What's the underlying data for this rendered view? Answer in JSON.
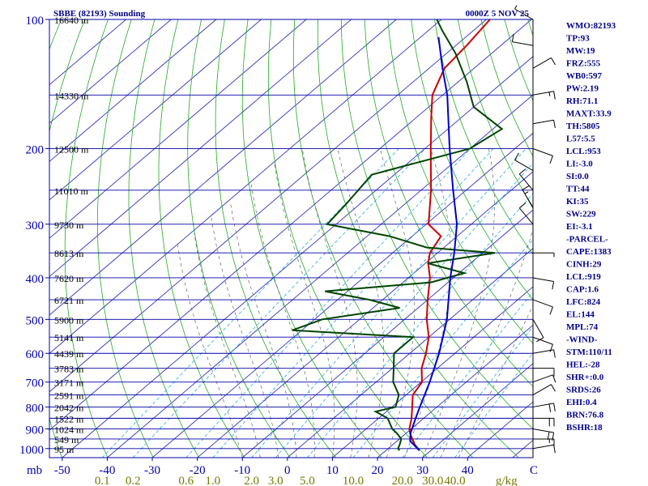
{
  "chart_data": {
    "type": "skew-t",
    "title": "SBBE (82193) Sounding",
    "datetime": "0000Z  5 NOV 25",
    "x_unit_label": "C",
    "y_unit_label": "mb",
    "mixing_unit_label": "g/kg",
    "pressure_ticks": [
      100,
      200,
      300,
      400,
      500,
      600,
      700,
      800,
      900,
      1000
    ],
    "temp_ticks": [
      -50,
      -40,
      -30,
      -20,
      -10,
      0,
      10,
      20,
      30,
      40
    ],
    "mixing_ticks": [
      "0.1",
      "0.2",
      "0.6",
      "1.0",
      "2.0",
      "3.0",
      "5.0",
      "10.0",
      "20.0",
      "30.0",
      "40.0"
    ],
    "height_levels": [
      {
        "p": 100,
        "h": "16640 m"
      },
      {
        "p": 150,
        "h": "14330 m"
      },
      {
        "p": 200,
        "h": "12500 m"
      },
      {
        "p": 250,
        "h": "11010 m"
      },
      {
        "p": 300,
        "h": "9730 m"
      },
      {
        "p": 350,
        "h": "8613 m"
      },
      {
        "p": 400,
        "h": "7620 m"
      },
      {
        "p": 450,
        "h": "6721 m"
      },
      {
        "p": 500,
        "h": "5900 m"
      },
      {
        "p": 550,
        "h": "5141 m"
      },
      {
        "p": 600,
        "h": "4439 m"
      },
      {
        "p": 650,
        "h": "3783 m"
      },
      {
        "p": 700,
        "h": "3171 m"
      },
      {
        "p": 750,
        "h": "2591 m"
      },
      {
        "p": 800,
        "h": "2042 m"
      },
      {
        "p": 850,
        "h": "1522 m"
      },
      {
        "p": 900,
        "h": "1024 m"
      },
      {
        "p": 950,
        "h": "549 m"
      },
      {
        "p": 1000,
        "h": "95 m"
      }
    ],
    "series": [
      {
        "kind": "temperature",
        "color": "#cc0000",
        "points": [
          [
            1010,
            27.4
          ],
          [
            1000,
            26.5
          ],
          [
            975,
            24.6
          ],
          [
            950,
            22.9
          ],
          [
            925,
            21.1
          ],
          [
            900,
            19.6
          ],
          [
            850,
            17.3
          ],
          [
            800,
            14.5
          ],
          [
            750,
            11.5
          ],
          [
            700,
            10.2
          ],
          [
            650,
            6.5
          ],
          [
            600,
            3.6
          ],
          [
            550,
            0.0
          ],
          [
            500,
            -5.1
          ],
          [
            450,
            -10.0
          ],
          [
            400,
            -15.2
          ],
          [
            370,
            -19.4
          ],
          [
            350,
            -21.7
          ],
          [
            320,
            -23.6
          ],
          [
            300,
            -29.5
          ],
          [
            250,
            -37.8
          ],
          [
            200,
            -48.7
          ],
          [
            170,
            -56.5
          ],
          [
            150,
            -62.3
          ],
          [
            130,
            -66.6
          ],
          [
            115,
            -67.6
          ],
          [
            100,
            -69.2
          ]
        ]
      },
      {
        "kind": "dewpoint",
        "color": "#004400",
        "points": [
          [
            1010,
            23.0
          ],
          [
            1000,
            22.2
          ],
          [
            975,
            21.4
          ],
          [
            950,
            20.4
          ],
          [
            925,
            18.3
          ],
          [
            900,
            15.8
          ],
          [
            850,
            12.0
          ],
          [
            820,
            7.6
          ],
          [
            800,
            10.8
          ],
          [
            750,
            8.4
          ],
          [
            700,
            3.8
          ],
          [
            650,
            0.3
          ],
          [
            600,
            -3.5
          ],
          [
            550,
            -3.5
          ],
          [
            530,
            -32.1
          ],
          [
            500,
            -28.3
          ],
          [
            470,
            -14.1
          ],
          [
            450,
            -22.9
          ],
          [
            430,
            -35.0
          ],
          [
            410,
            -13.8
          ],
          [
            390,
            -8.8
          ],
          [
            370,
            -19.5
          ],
          [
            350,
            -7.3
          ],
          [
            340,
            -23.8
          ],
          [
            320,
            -35.0
          ],
          [
            300,
            -52.0
          ],
          [
            270,
            -53.0
          ],
          [
            230,
            -55.0
          ],
          [
            200,
            -40.0
          ],
          [
            180,
            -38.0
          ],
          [
            160,
            -50.0
          ],
          [
            140,
            -58.0
          ],
          [
            120,
            -68.0
          ],
          [
            106,
            -77.0
          ],
          [
            100,
            -81.0
          ]
        ]
      },
      {
        "kind": "parcel",
        "color": "#0000cc",
        "points": [
          [
            1010,
            27.4
          ],
          [
            960,
            22.9
          ],
          [
            919,
            20.9
          ],
          [
            850,
            18.2
          ],
          [
            800,
            16.2
          ],
          [
            700,
            11.9
          ],
          [
            600,
            6.5
          ],
          [
            500,
            -0.6
          ],
          [
            400,
            -10.7
          ],
          [
            350,
            -16.3
          ],
          [
            300,
            -23.2
          ],
          [
            250,
            -32.9
          ],
          [
            200,
            -44.5
          ],
          [
            150,
            -59.0
          ],
          [
            130,
            -67.0
          ],
          [
            110,
            -76.0
          ]
        ]
      }
    ],
    "winds": [
      {
        "p": 100,
        "dir": 300,
        "spd": 5
      },
      {
        "p": 115,
        "dir": 280,
        "spd": 10
      },
      {
        "p": 130,
        "dir": 60,
        "spd": 10
      },
      {
        "p": 150,
        "dir": 80,
        "spd": 15
      },
      {
        "p": 175,
        "dir": 80,
        "spd": 10
      },
      {
        "p": 200,
        "dir": 110,
        "spd": 10
      },
      {
        "p": 225,
        "dir": 300,
        "spd": 10
      },
      {
        "p": 250,
        "dir": 320,
        "spd": 10
      },
      {
        "p": 275,
        "dir": 330,
        "spd": 15
      },
      {
        "p": 300,
        "dir": 320,
        "spd": 10
      },
      {
        "p": 350,
        "dir": 90,
        "spd": 5
      },
      {
        "p": 400,
        "dir": 100,
        "spd": 10
      },
      {
        "p": 450,
        "dir": 110,
        "spd": 10
      },
      {
        "p": 500,
        "dir": 150,
        "spd": 10
      },
      {
        "p": 550,
        "dir": 110,
        "spd": 10
      },
      {
        "p": 600,
        "dir": 80,
        "spd": 10
      },
      {
        "p": 650,
        "dir": 90,
        "spd": 10
      },
      {
        "p": 700,
        "dir": 70,
        "spd": 10
      },
      {
        "p": 750,
        "dir": 60,
        "spd": 10
      },
      {
        "p": 800,
        "dir": 80,
        "spd": 20
      },
      {
        "p": 850,
        "dir": 90,
        "spd": 20
      },
      {
        "p": 900,
        "dir": 100,
        "spd": 20
      },
      {
        "p": 950,
        "dir": 90,
        "spd": 15
      },
      {
        "p": 1000,
        "dir": 80,
        "spd": 10
      }
    ],
    "indices": [
      "WMO:82193",
      "TP:93",
      "MW:19",
      "FRZ:555",
      "WB0:597",
      "PW:2.19",
      "RH:71.1",
      "MAXT:33.9",
      "TH:5805",
      "L57:5.5",
      "LCL:953",
      "LI:-3.0",
      "SI:0.0",
      "TT:44",
      "KI:35",
      "SW:229",
      "EI:-3.1",
      "-PARCEL-",
      "CAPE:1383",
      "CINH:29",
      "LCL:919",
      "CAP:1.6",
      "LFC:824",
      "EL:144",
      "MPL:74",
      "-WIND-",
      "STM:110/11",
      "HEL:-28",
      "SHR+:0.0",
      "SRDS:26",
      "EHI:0.4",
      "BRN:76.8",
      "BSHR:18"
    ]
  }
}
